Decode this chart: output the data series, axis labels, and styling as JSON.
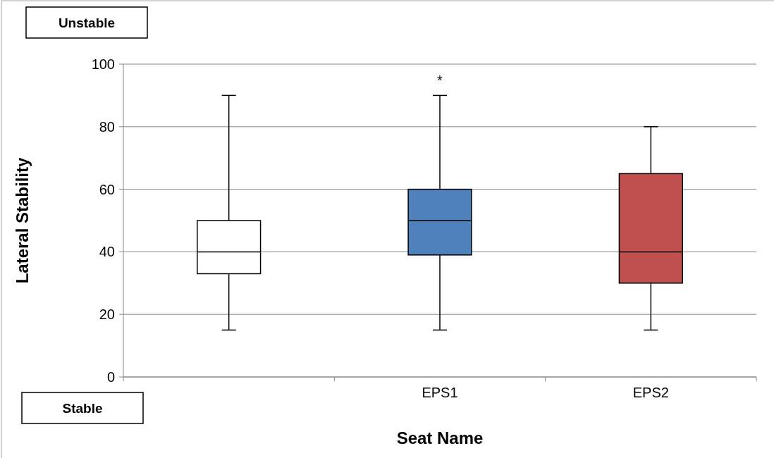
{
  "chart_data": {
    "type": "box",
    "xlabel": "Seat Name",
    "ylabel": "Lateral Stability",
    "categories": [
      null,
      "EPS1",
      "EPS2"
    ],
    "colors": [
      "#ffffff",
      "#4f81bd",
      "#c0504d"
    ],
    "boxes": [
      {
        "low": 15,
        "q1": 33,
        "median": 40,
        "q3": 50,
        "high": 90
      },
      {
        "low": 15,
        "q1": 39,
        "median": 50,
        "q3": 60,
        "high": 90
      },
      {
        "low": 15,
        "q1": 30,
        "median": 40,
        "q3": 65,
        "high": 80
      }
    ],
    "ylim": [
      0,
      100
    ],
    "yticks": [
      0,
      20,
      40,
      60,
      80,
      100
    ],
    "grid": "y",
    "annotations": [
      "Unstable",
      "Stable",
      "*"
    ]
  }
}
